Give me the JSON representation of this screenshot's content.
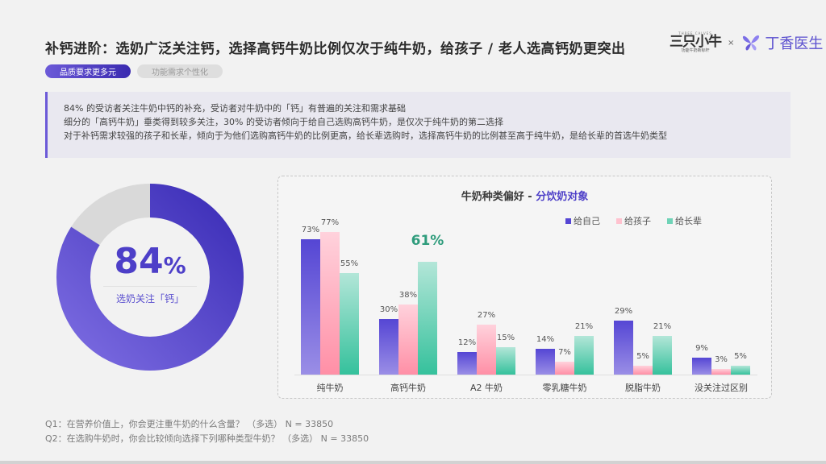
{
  "header": {
    "title": "补钙进阶：选奶广泛关注钙，选择高钙牛奶比例仅次于纯牛奶，给孩子 / 老人选高钙奶更突出",
    "logo_a_top": "THREE CALVES",
    "logo_a_main": "三只小牛",
    "logo_a_sub": "功能牛奶新标杆",
    "logo_separator": "×",
    "logo_b_name": "丁香医生"
  },
  "tags": [
    {
      "label": "品质要求更多元",
      "active": true
    },
    {
      "label": "功能需求个性化",
      "active": false
    }
  ],
  "summary": {
    "lines": [
      "84% 的受访者关注牛奶中钙的补充，受访者对牛奶中的「钙」有普遍的关注和需求基础",
      "细分的「高钙牛奶」垂类得到较多关注，30% 的受访者倾向于给自己选购高钙牛奶，是仅次于纯牛奶的第二选择",
      "对于补钙需求较强的孩子和长辈，倾向于为他们选购高钙牛奶的比例更高，给长辈选购时，选择高钙牛奶的比例甚至高于纯牛奶，是给长辈的首选牛奶类型"
    ]
  },
  "donut": {
    "value": "84",
    "unit": "%",
    "label": "选奶关注「钙」",
    "percent": 84,
    "color": "#4d3fc8",
    "rest_color": "#d9d9d9"
  },
  "chart_data": {
    "type": "bar",
    "title": "牛奶种类偏好 - 分饮奶对象",
    "title_main": "牛奶种类偏好 - ",
    "title_highlight": "分饮奶对象",
    "categories": [
      "纯牛奶",
      "高钙牛奶",
      "A2 牛奶",
      "零乳糖牛奶",
      "脱脂牛奶",
      "没关注过区别"
    ],
    "series": [
      {
        "name": "给自己",
        "values": [
          73,
          30,
          12,
          14,
          29,
          9
        ],
        "color": "#5546d4"
      },
      {
        "name": "给孩子",
        "values": [
          77,
          38,
          27,
          7,
          5,
          3
        ],
        "color": "#ffb3c3"
      },
      {
        "name": "给长辈",
        "values": [
          55,
          61,
          15,
          21,
          21,
          5
        ],
        "color": "#6fd3b7"
      }
    ],
    "highlight": {
      "category": "高钙牛奶",
      "series": "给长辈",
      "value": "61%"
    },
    "xlabel": "",
    "ylabel": "",
    "ylim": [
      0,
      100
    ],
    "grid": false,
    "legend_position": "top-right"
  },
  "footnotes": [
    "Q1：在营养价值上，你会更注重牛奶的什么含量？ （多选） N = 33850",
    "Q2：在选购牛奶时，你会比较倾向选择下列哪种类型牛奶？ （多选） N = 33850"
  ]
}
